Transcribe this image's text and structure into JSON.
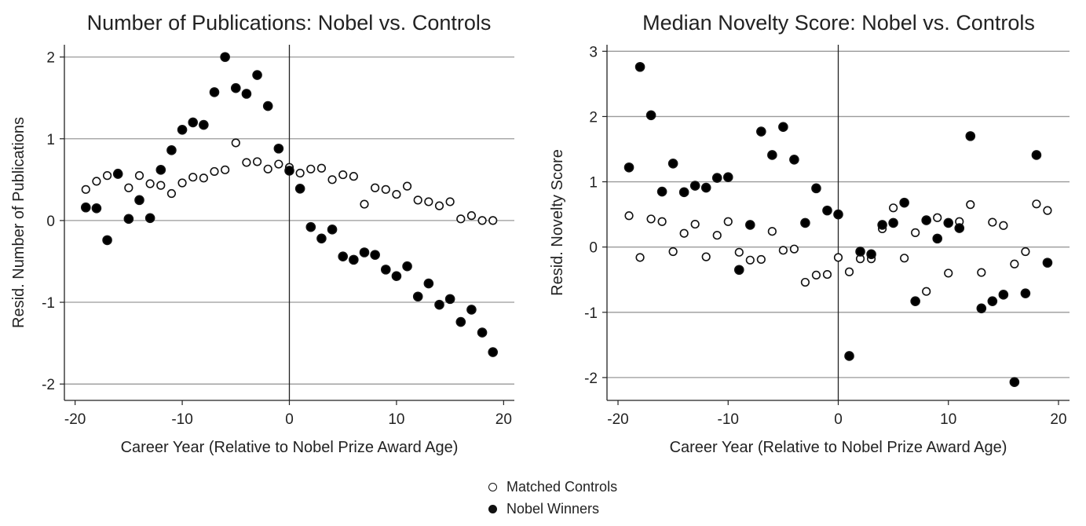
{
  "chart_data": [
    {
      "type": "scatter",
      "title": "Number of Publications: Nobel vs. Controls",
      "xlabel": "Career Year (Relative to Nobel Prize Award Age)",
      "ylabel": "Resid. Number of Publications",
      "xlim": [
        -21,
        21
      ],
      "ylim": [
        -2.2,
        2.15
      ],
      "xticks": [
        -20,
        -10,
        0,
        10,
        20
      ],
      "yticks": [
        -2,
        -1,
        0,
        1,
        2
      ],
      "grid": "horizontal",
      "series": [
        {
          "name": "Matched Controls",
          "marker": "open",
          "x": [
            -19,
            -18,
            -17,
            -16,
            -15,
            -14,
            -13,
            -12,
            -11,
            -10,
            -9,
            -8,
            -7,
            -6,
            -5,
            -4,
            -3,
            -2,
            -1,
            0,
            1,
            2,
            3,
            4,
            5,
            6,
            7,
            8,
            9,
            10,
            11,
            12,
            13,
            14,
            15,
            16,
            17,
            18,
            19
          ],
          "y": [
            0.38,
            0.48,
            0.55,
            0.58,
            0.4,
            0.55,
            0.45,
            0.43,
            0.33,
            0.46,
            0.53,
            0.52,
            0.6,
            0.62,
            0.95,
            0.71,
            0.72,
            0.63,
            0.69,
            0.65,
            0.58,
            0.63,
            0.64,
            0.5,
            0.56,
            0.54,
            0.2,
            0.4,
            0.38,
            0.32,
            0.42,
            0.25,
            0.23,
            0.18,
            0.23,
            0.02,
            0.06,
            0.0,
            0.0
          ]
        },
        {
          "name": "Nobel Winners",
          "marker": "filled",
          "x": [
            -19,
            -18,
            -17,
            -16,
            -15,
            -14,
            -13,
            -12,
            -11,
            -10,
            -9,
            -8,
            -7,
            -6,
            -5,
            -4,
            -3,
            -2,
            -1,
            0,
            1,
            2,
            3,
            4,
            5,
            6,
            7,
            8,
            9,
            10,
            11,
            12,
            13,
            14,
            15,
            16,
            17,
            18,
            19
          ],
          "y": [
            0.16,
            0.15,
            -0.24,
            0.57,
            0.02,
            0.25,
            0.03,
            0.62,
            0.86,
            1.11,
            1.2,
            1.17,
            1.57,
            2.0,
            1.62,
            1.55,
            1.78,
            1.4,
            0.88,
            0.61,
            0.39,
            -0.08,
            -0.22,
            -0.11,
            -0.44,
            -0.48,
            -0.39,
            -0.42,
            -0.6,
            -0.68,
            -0.56,
            -0.93,
            -0.77,
            -1.03,
            -0.96,
            -1.24,
            -1.09,
            -1.37,
            -1.61
          ]
        }
      ]
    },
    {
      "type": "scatter",
      "title": "Median Novelty Score: Nobel vs. Controls",
      "xlabel": "Career Year (Relative to Nobel Prize Award Age)",
      "ylabel": "Resid. Novelty Score",
      "xlim": [
        -21,
        21
      ],
      "ylim": [
        -2.35,
        3.1
      ],
      "xticks": [
        -20,
        -10,
        0,
        10,
        20
      ],
      "yticks": [
        -2,
        -1,
        0,
        1,
        2,
        3
      ],
      "grid": "horizontal",
      "series": [
        {
          "name": "Matched Controls",
          "marker": "open",
          "x": [
            -19,
            -18,
            -17,
            -16,
            -15,
            -14,
            -13,
            -12,
            -11,
            -10,
            -9,
            -8,
            -7,
            -6,
            -5,
            -4,
            -3,
            -2,
            -1,
            0,
            1,
            2,
            3,
            4,
            5,
            6,
            7,
            8,
            9,
            10,
            11,
            12,
            13,
            14,
            15,
            16,
            17,
            18,
            19
          ],
          "y": [
            0.48,
            -0.16,
            0.43,
            0.39,
            -0.07,
            0.21,
            0.35,
            -0.15,
            0.18,
            0.39,
            -0.08,
            -0.2,
            -0.19,
            0.24,
            -0.05,
            -0.03,
            -0.54,
            -0.43,
            -0.42,
            -0.16,
            -0.38,
            -0.18,
            -0.18,
            0.28,
            0.6,
            -0.17,
            0.22,
            -0.68,
            0.45,
            -0.4,
            0.39,
            0.65,
            -0.39,
            0.38,
            0.33,
            -0.26,
            -0.07,
            0.66,
            0.56
          ]
        },
        {
          "name": "Nobel Winners",
          "marker": "filled",
          "x": [
            -19,
            -18,
            -17,
            -16,
            -15,
            -14,
            -13,
            -12,
            -11,
            -10,
            -9,
            -8,
            -7,
            -6,
            -5,
            -4,
            -3,
            -2,
            -1,
            0,
            1,
            2,
            3,
            4,
            5,
            6,
            7,
            8,
            9,
            10,
            11,
            12,
            13,
            14,
            15,
            16,
            17,
            18,
            19
          ],
          "y": [
            1.22,
            2.76,
            2.02,
            0.85,
            1.28,
            0.84,
            0.94,
            0.91,
            1.06,
            1.07,
            -0.35,
            0.34,
            1.77,
            1.41,
            1.84,
            1.34,
            0.37,
            0.9,
            0.56,
            0.5,
            -1.67,
            -0.07,
            -0.11,
            0.34,
            0.37,
            0.68,
            -0.83,
            0.41,
            0.13,
            0.37,
            0.29,
            1.7,
            -0.94,
            -0.83,
            -0.73,
            -2.07,
            -0.71,
            1.41,
            -0.24
          ]
        }
      ]
    }
  ],
  "legend": {
    "items": [
      {
        "label": "Matched Controls",
        "marker": "open"
      },
      {
        "label": "Nobel Winners",
        "marker": "filled"
      }
    ]
  }
}
